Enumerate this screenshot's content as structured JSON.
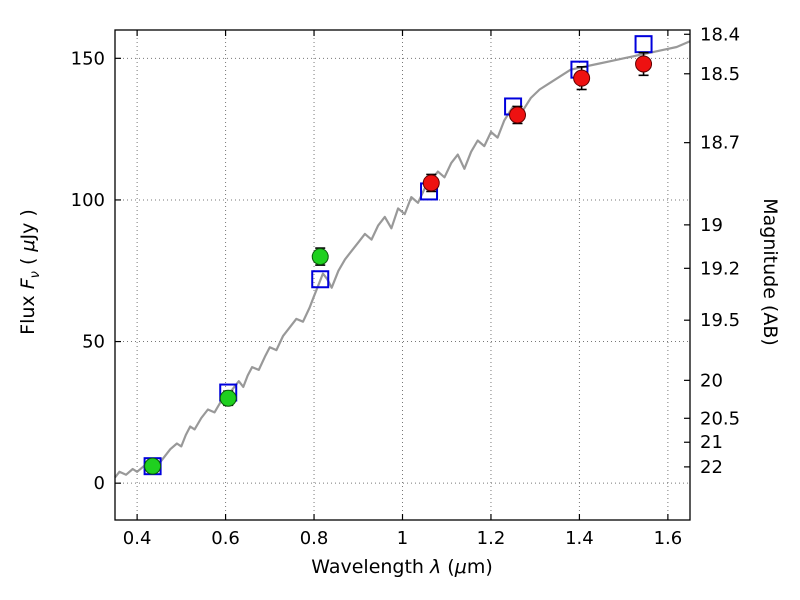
{
  "figure": {
    "background": "#ffffff"
  },
  "axes": {
    "x": {
      "label_parts": {
        "word": "Wavelength ",
        "lambda": "λ",
        "unit_open": " (",
        "mu": "μ",
        "unit_close": "m)"
      }
    },
    "y_left": {
      "label_parts": {
        "word": "Flux ",
        "f": "F",
        "nu": "ν",
        "unit_open": " ( ",
        "mu": "μ",
        "unit_close": "Jy )"
      }
    },
    "y_right": {
      "label": "Magnitude (AB)"
    }
  },
  "chart_data": {
    "type": "line",
    "title": "",
    "xlabel": "Wavelength λ (μm)",
    "ylabel_left": "Flux Fν ( μJy )",
    "ylabel_right": "Magnitude (AB)",
    "xlim": [
      0.35,
      1.65
    ],
    "ylim": [
      -13,
      160
    ],
    "grid": true,
    "x_ticks": [
      0.4,
      0.6,
      0.8,
      1.0,
      1.2,
      1.4,
      1.6
    ],
    "x_tick_labels": [
      "0.4",
      "0.6",
      "0.8",
      "1",
      "1.2",
      "1.4",
      "1.6"
    ],
    "y_ticks_left": [
      0,
      50,
      100,
      150
    ],
    "y_tick_labels_left": [
      "0",
      "50",
      "100",
      "150"
    ],
    "y_ticks_right_mags": [
      18.4,
      18.5,
      18.7,
      19,
      19.2,
      19.5,
      20,
      20.5,
      21,
      22
    ],
    "y_tick_labels_right": [
      "18.4",
      "18.5",
      "18.7",
      "19",
      "19.2",
      "19.5",
      "20",
      "20.5",
      "21",
      "22"
    ],
    "ab_zeropoint": 23.9,
    "colors": {
      "spectrum": "#999999",
      "model_photometry": "#0000dd",
      "observed_optical": "#1fd01f",
      "observed_optical_edge": "#0a570a",
      "observed_infrared": "#ee1111",
      "observed_infrared_edge": "#5f0000",
      "errorbar": "#000000",
      "grid": "#777777"
    },
    "series": [
      {
        "name": "model-spectrum",
        "kind": "line",
        "x": [
          0.35,
          0.36,
          0.375,
          0.39,
          0.4,
          0.415,
          0.43,
          0.445,
          0.46,
          0.475,
          0.49,
          0.5,
          0.51,
          0.52,
          0.53,
          0.545,
          0.56,
          0.575,
          0.59,
          0.6,
          0.615,
          0.63,
          0.64,
          0.65,
          0.66,
          0.675,
          0.69,
          0.7,
          0.715,
          0.73,
          0.745,
          0.76,
          0.775,
          0.79,
          0.8,
          0.81,
          0.82,
          0.83,
          0.84,
          0.855,
          0.87,
          0.885,
          0.9,
          0.915,
          0.93,
          0.945,
          0.96,
          0.975,
          0.99,
          1.005,
          1.02,
          1.035,
          1.05,
          1.065,
          1.08,
          1.095,
          1.11,
          1.125,
          1.14,
          1.155,
          1.17,
          1.185,
          1.2,
          1.215,
          1.23,
          1.25,
          1.27,
          1.29,
          1.31,
          1.33,
          1.35,
          1.38,
          1.41,
          1.44,
          1.47,
          1.5,
          1.53,
          1.56,
          1.59,
          1.62,
          1.65
        ],
        "y": [
          2,
          4,
          3,
          5,
          4,
          6,
          7,
          6,
          9,
          12,
          14,
          13,
          17,
          20,
          19,
          23,
          26,
          25,
          29,
          31,
          33,
          36,
          34,
          38,
          41,
          40,
          45,
          48,
          47,
          52,
          55,
          58,
          57,
          62,
          66,
          70,
          74,
          72,
          69,
          75,
          79,
          82,
          85,
          88,
          86,
          91,
          94,
          90,
          97,
          95,
          101,
          99,
          104,
          107,
          110,
          108,
          113,
          116,
          111,
          117,
          121,
          119,
          124,
          122,
          128,
          133,
          131,
          136,
          139,
          141,
          143,
          146,
          147,
          148,
          149,
          150,
          151,
          152,
          153,
          154,
          156
        ]
      },
      {
        "name": "model-photometry",
        "kind": "square-open",
        "x": [
          0.435,
          0.606,
          0.814,
          1.06,
          1.25,
          1.4,
          1.545
        ],
        "y": [
          6,
          32,
          72,
          103,
          133,
          146,
          155
        ]
      },
      {
        "name": "observed-optical",
        "kind": "circle",
        "x": [
          0.435,
          0.606,
          0.814
        ],
        "y": [
          6,
          30,
          80
        ],
        "yerr": [
          1.5,
          2.5,
          3
        ]
      },
      {
        "name": "observed-infrared",
        "kind": "circle",
        "x": [
          1.065,
          1.26,
          1.405,
          1.545
        ],
        "y": [
          106,
          130,
          143,
          148
        ],
        "yerr": [
          3,
          3,
          4,
          4
        ]
      }
    ]
  }
}
